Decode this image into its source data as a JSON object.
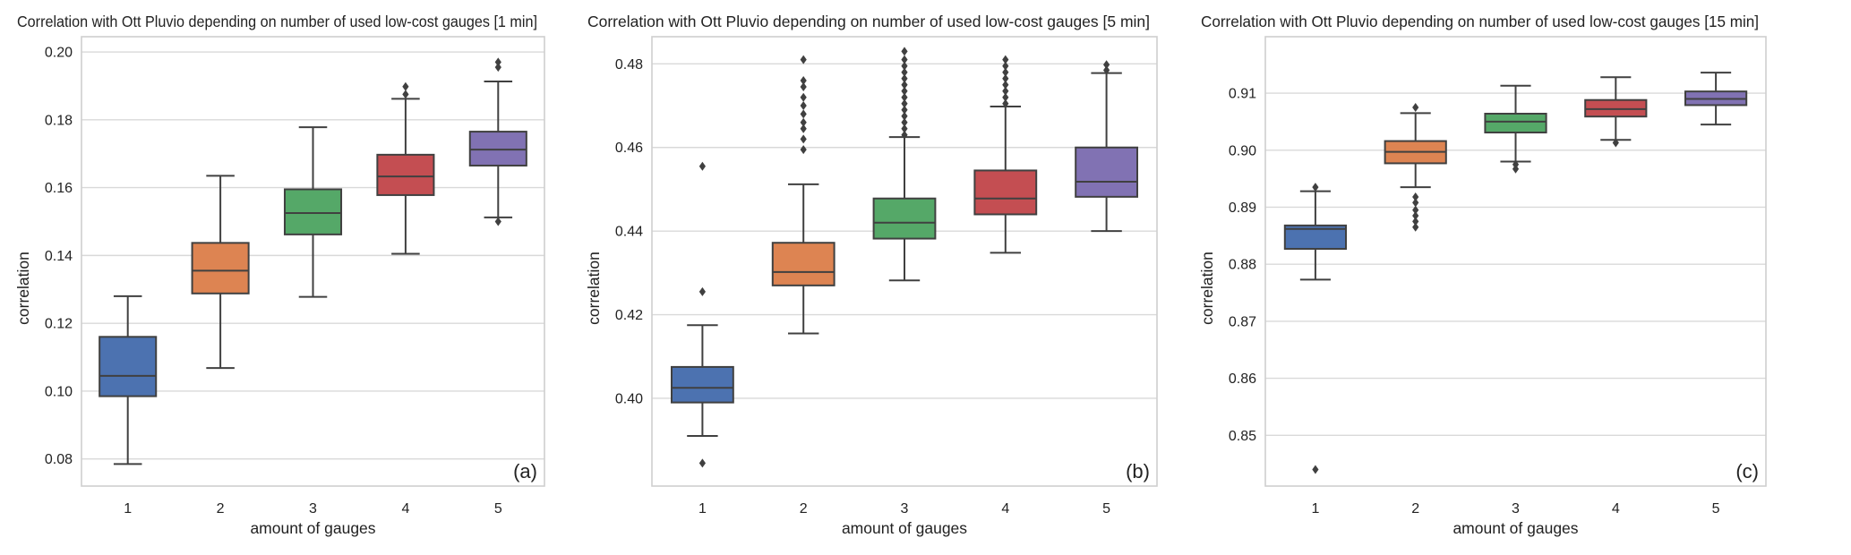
{
  "figure": {
    "colors": {
      "box_1": "#4c72b0",
      "box_2": "#dd8452",
      "box_3": "#55a868",
      "box_4": "#c44e52",
      "box_5": "#8172b3",
      "line": "#404040",
      "grid": "#d9d9d9"
    }
  },
  "chart_data": [
    {
      "type": "box",
      "panel_label": "(a)",
      "title": "Correlation with Ott Pluvio depending on number of used low-cost gauges [1 min]",
      "xlabel": "amount of gauges",
      "ylabel": "correlation",
      "categories": [
        "1",
        "2",
        "3",
        "4",
        "5"
      ],
      "ylim": [
        0.072,
        0.2045
      ],
      "yticks": [
        0.08,
        0.1,
        0.12,
        0.14,
        0.16,
        0.18,
        0.2
      ],
      "ytick_labels": [
        "0.08",
        "0.10",
        "0.12",
        "0.14",
        "0.16",
        "0.18",
        "0.20"
      ],
      "boxes": [
        {
          "category": "1",
          "whislo": 0.0785,
          "q1": 0.0985,
          "med": 0.1045,
          "q3": 0.116,
          "whishi": 0.128,
          "fliers": []
        },
        {
          "category": "2",
          "whislo": 0.1068,
          "q1": 0.1288,
          "med": 0.1355,
          "q3": 0.1437,
          "whishi": 0.1635,
          "fliers": []
        },
        {
          "category": "3",
          "whislo": 0.1278,
          "q1": 0.1462,
          "med": 0.1525,
          "q3": 0.1595,
          "whishi": 0.1778,
          "fliers": []
        },
        {
          "category": "4",
          "whislo": 0.1405,
          "q1": 0.1578,
          "med": 0.1633,
          "q3": 0.1697,
          "whishi": 0.1862,
          "fliers": [
            0.1875,
            0.1898
          ]
        },
        {
          "category": "5",
          "whislo": 0.1512,
          "q1": 0.1665,
          "med": 0.1712,
          "q3": 0.1765,
          "whishi": 0.1913,
          "fliers": [
            0.15,
            0.1955,
            0.197
          ]
        }
      ]
    },
    {
      "type": "box",
      "panel_label": "(b)",
      "title": "Correlation with Ott Pluvio depending on number of used low-cost gauges [5 min]",
      "xlabel": "amount of gauges",
      "ylabel": "correlation",
      "categories": [
        "1",
        "2",
        "3",
        "4",
        "5"
      ],
      "ylim": [
        0.379,
        0.4865
      ],
      "yticks": [
        0.4,
        0.42,
        0.44,
        0.46,
        0.48
      ],
      "ytick_labels": [
        "0.40",
        "0.42",
        "0.44",
        "0.46",
        "0.48"
      ],
      "boxes": [
        {
          "category": "1",
          "whislo": 0.391,
          "q1": 0.399,
          "med": 0.4025,
          "q3": 0.4075,
          "whishi": 0.4175,
          "fliers": [
            0.3845,
            0.4255,
            0.4555
          ]
        },
        {
          "category": "2",
          "whislo": 0.4155,
          "q1": 0.427,
          "med": 0.4302,
          "q3": 0.4372,
          "whishi": 0.4512,
          "fliers": [
            0.4595,
            0.462,
            0.4645,
            0.466,
            0.468,
            0.47,
            0.472,
            0.4745,
            0.476,
            0.481
          ]
        },
        {
          "category": "3",
          "whislo": 0.4282,
          "q1": 0.4382,
          "med": 0.442,
          "q3": 0.4478,
          "whishi": 0.4625,
          "fliers": [
            0.463,
            0.4645,
            0.466,
            0.4675,
            0.469,
            0.4705,
            0.472,
            0.4735,
            0.475,
            0.4765,
            0.478,
            0.4795,
            0.481,
            0.483
          ]
        },
        {
          "category": "4",
          "whislo": 0.4348,
          "q1": 0.444,
          "med": 0.4478,
          "q3": 0.4545,
          "whishi": 0.4698,
          "fliers": [
            0.4705,
            0.472,
            0.4735,
            0.475,
            0.4765,
            0.478,
            0.4795,
            0.481
          ]
        },
        {
          "category": "5",
          "whislo": 0.44,
          "q1": 0.4482,
          "med": 0.4518,
          "q3": 0.46,
          "whishi": 0.4778,
          "fliers": [
            0.4785,
            0.4798
          ]
        }
      ]
    },
    {
      "type": "box",
      "panel_label": "(c)",
      "title": "Correlation with Ott Pluvio depending on number of used low-cost gauges [15 min]",
      "xlabel": "amount of gauges",
      "ylabel": "correlation",
      "categories": [
        "1",
        "2",
        "3",
        "4",
        "5"
      ],
      "ylim": [
        0.8411,
        0.9199
      ],
      "yticks": [
        0.85,
        0.86,
        0.87,
        0.88,
        0.89,
        0.9,
        0.91
      ],
      "ytick_labels": [
        "0.85",
        "0.86",
        "0.87",
        "0.88",
        "0.89",
        "0.90",
        "0.91"
      ],
      "boxes": [
        {
          "category": "1",
          "whislo": 0.8773,
          "q1": 0.8827,
          "med": 0.8862,
          "q3": 0.8868,
          "whishi": 0.8928,
          "fliers": [
            0.844,
            0.8935
          ]
        },
        {
          "category": "2",
          "whislo": 0.8935,
          "q1": 0.8977,
          "med": 0.8997,
          "q3": 0.9016,
          "whishi": 0.9065,
          "fliers": [
            0.8865,
            0.8875,
            0.8885,
            0.8895,
            0.8908,
            0.8918,
            0.9075
          ]
        },
        {
          "category": "3",
          "whislo": 0.898,
          "q1": 0.9031,
          "med": 0.905,
          "q3": 0.9064,
          "whishi": 0.9113,
          "fliers": [
            0.8967,
            0.8975
          ]
        },
        {
          "category": "4",
          "whislo": 0.9018,
          "q1": 0.9059,
          "med": 0.9072,
          "q3": 0.9088,
          "whishi": 0.9128,
          "fliers": [
            0.9013
          ]
        },
        {
          "category": "5",
          "whislo": 0.9045,
          "q1": 0.9079,
          "med": 0.909,
          "q3": 0.9103,
          "whishi": 0.9136,
          "fliers": []
        }
      ]
    }
  ]
}
